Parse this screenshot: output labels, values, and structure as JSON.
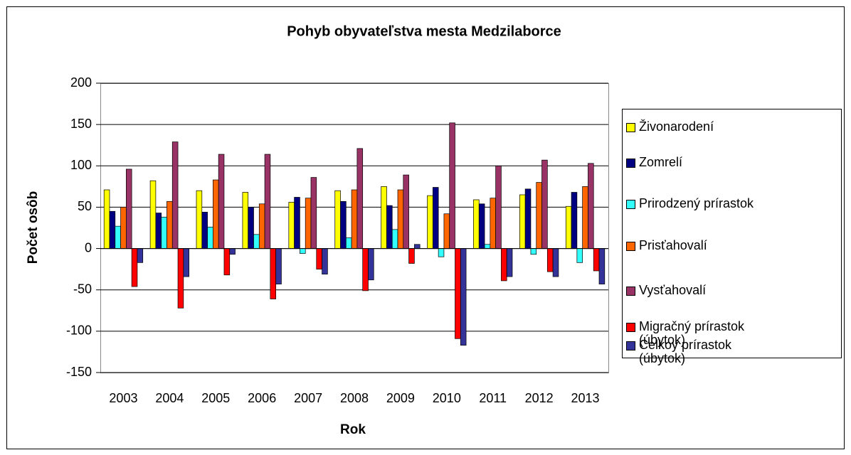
{
  "chart_data": {
    "type": "bar",
    "title": "Pohyb obyvateľstva mesta Medzilaborce",
    "x_label": "Rok",
    "y_label": "Počet osôb",
    "categories": [
      "2003",
      "2004",
      "2005",
      "2006",
      "2007",
      "2008",
      "2009",
      "2010",
      "2011",
      "2012",
      "2013"
    ],
    "series": [
      {
        "name": "Živonarodení",
        "color": "#ffff00",
        "values": [
          71,
          82,
          70,
          68,
          56,
          70,
          75,
          64,
          59,
          65,
          51
        ]
      },
      {
        "name": "Zomrelí",
        "color": "#000080",
        "values": [
          45,
          43,
          44,
          50,
          62,
          57,
          52,
          74,
          54,
          72,
          68
        ]
      },
      {
        "name": "Prirodzený prírastok",
        "color": "#33ffff",
        "values": [
          27,
          38,
          26,
          17,
          -6,
          13,
          23,
          -10,
          5,
          -7,
          -17
        ]
      },
      {
        "name": "Prisťahovalí",
        "color": "#ff6600",
        "values": [
          50,
          57,
          83,
          54,
          61,
          71,
          71,
          42,
          61,
          80,
          75
        ]
      },
      {
        "name": "Vysťahovalí",
        "color": "#993366",
        "values": [
          96,
          129,
          114,
          114,
          86,
          121,
          89,
          152,
          100,
          107,
          103
        ]
      },
      {
        "name": "Migračný prírastok (úbytok)",
        "color": "#ff0000",
        "values": [
          -46,
          -72,
          -32,
          -61,
          -25,
          -51,
          -18,
          -109,
          -39,
          -28,
          -27
        ]
      },
      {
        "name": "Celkoy prírastok (úbytok)",
        "color": "#333399",
        "values": [
          -17,
          -34,
          -7,
          -43,
          -31,
          -38,
          5,
          -117,
          -34,
          -34,
          -43
        ]
      }
    ],
    "ylim": [
      -150,
      200
    ],
    "yticks": [
      -150,
      -100,
      -50,
      0,
      50,
      100,
      150,
      200
    ],
    "grid": true
  }
}
